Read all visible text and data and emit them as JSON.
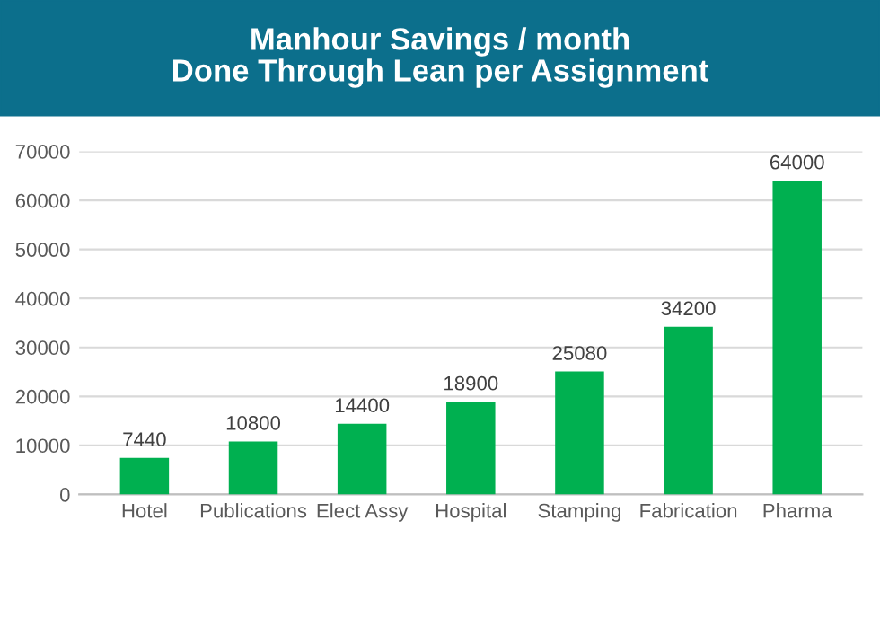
{
  "chart_data": {
    "type": "bar",
    "title": "Manhour Savings / month\nDone Through Lean per Assignment",
    "categories": [
      "Hotel",
      "Publications",
      "Elect Assy",
      "Hospital",
      "Stamping",
      "Fabrication",
      "Pharma"
    ],
    "values": [
      7440,
      10800,
      14400,
      18900,
      25080,
      34200,
      64000
    ],
    "color": "#00b050",
    "ylim": [
      0,
      70000
    ],
    "yticks": [
      0,
      10000,
      20000,
      30000,
      40000,
      50000,
      60000,
      70000
    ],
    "grid": "y",
    "data_labels": true
  }
}
